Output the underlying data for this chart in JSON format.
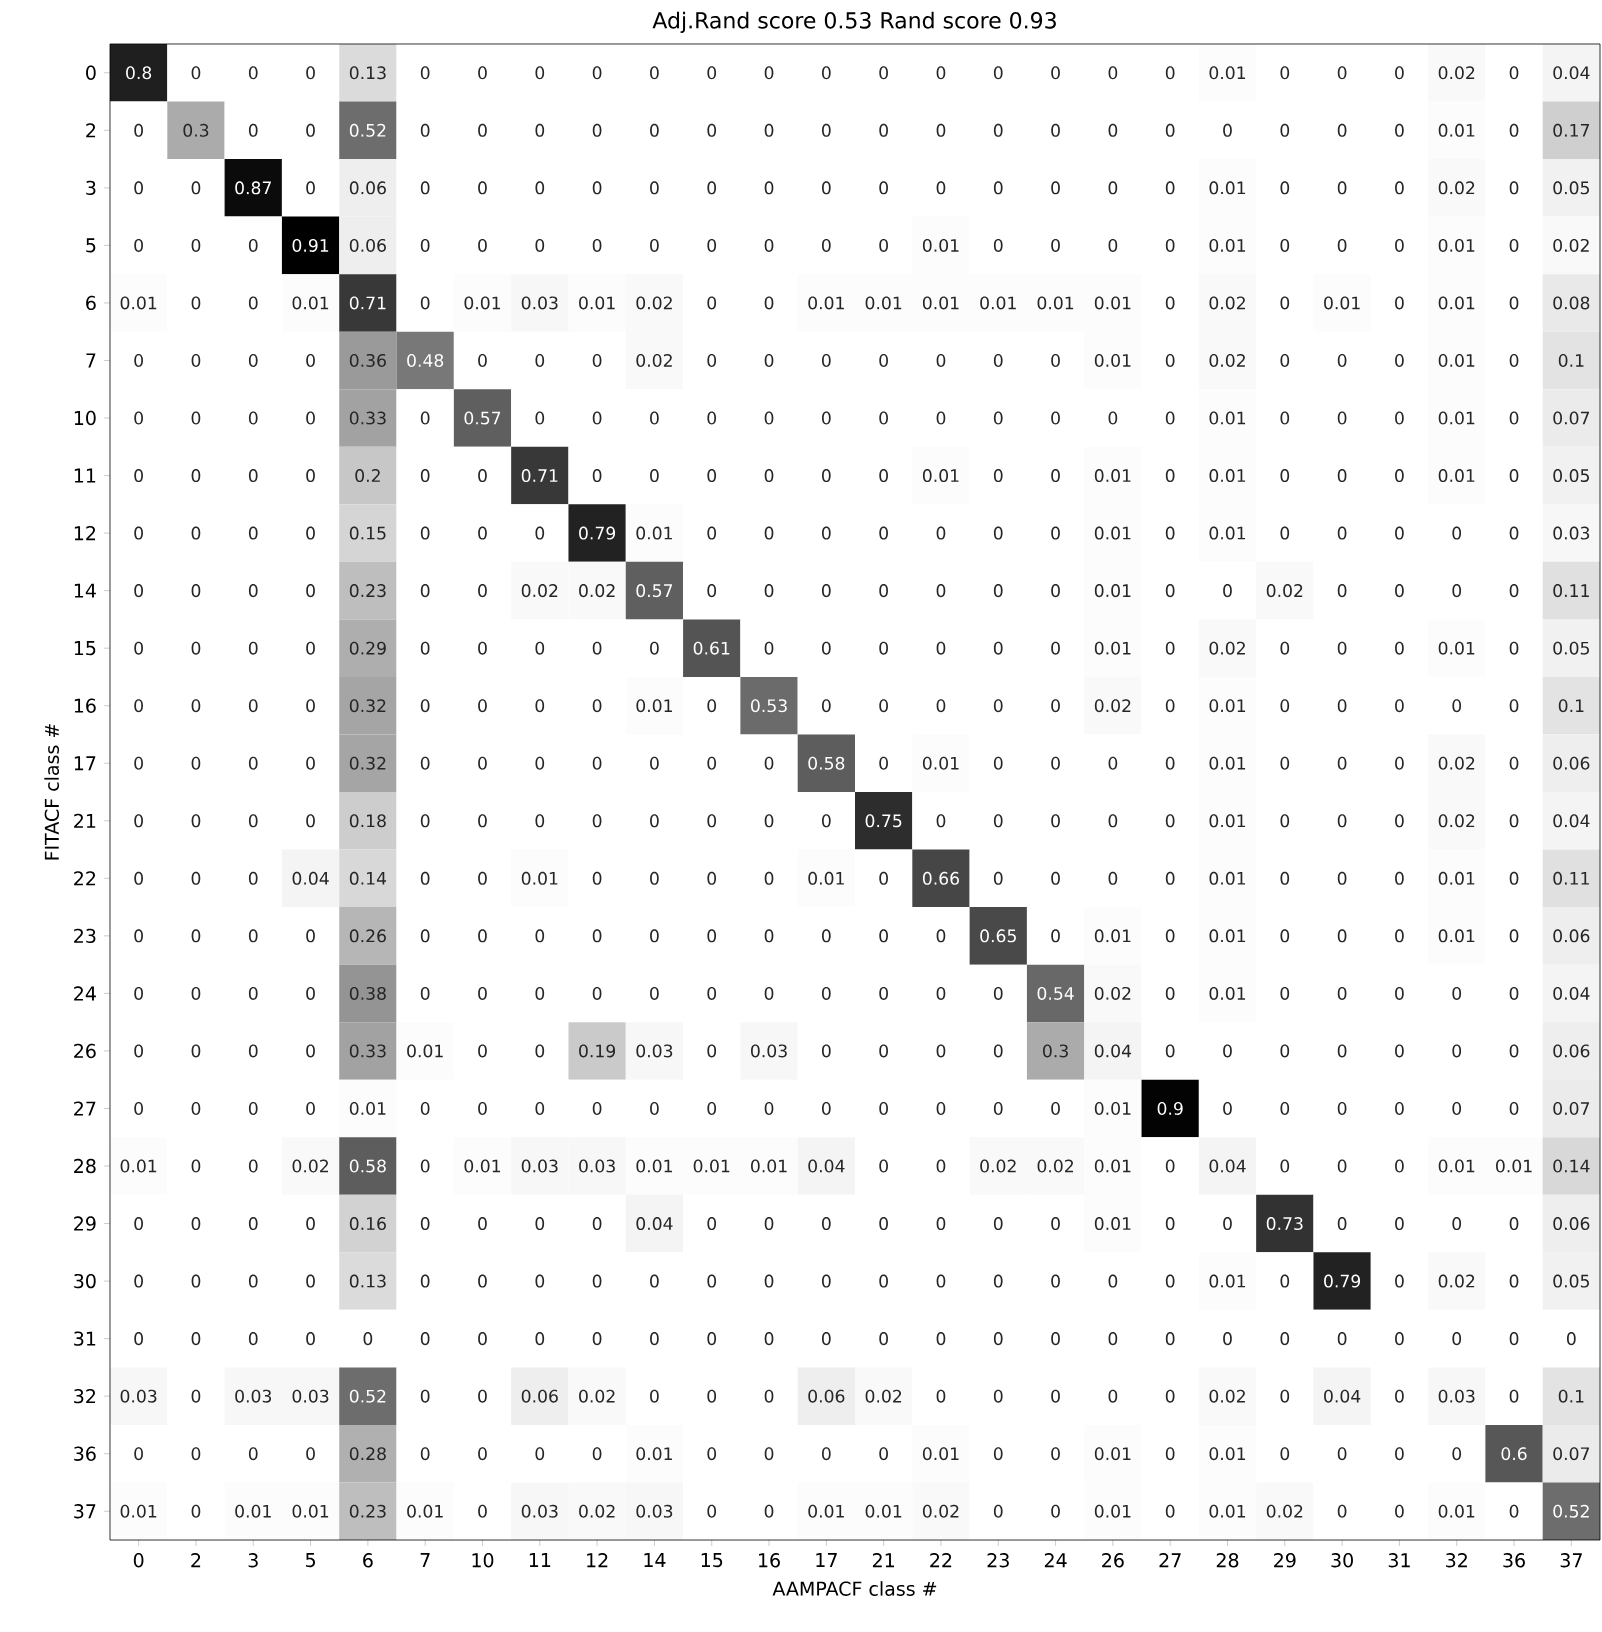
{
  "chart_data": {
    "type": "heatmap",
    "title": "Adj.Rand score 0.53 Rand score 0.93",
    "xlabel": "AAMPACF class #",
    "ylabel": "FITACF class #",
    "categories": [
      "0",
      "2",
      "3",
      "5",
      "6",
      "7",
      "10",
      "11",
      "12",
      "14",
      "15",
      "16",
      "17",
      "21",
      "22",
      "23",
      "24",
      "26",
      "27",
      "28",
      "29",
      "30",
      "31",
      "32",
      "36",
      "37"
    ],
    "y_categories": [
      "0",
      "2",
      "3",
      "5",
      "6",
      "7",
      "10",
      "11",
      "12",
      "14",
      "15",
      "16",
      "17",
      "21",
      "22",
      "23",
      "24",
      "26",
      "27",
      "28",
      "29",
      "30",
      "31",
      "32",
      "36",
      "37"
    ],
    "data_labels": true,
    "cells": [
      [
        0.8,
        0,
        0,
        0,
        0.13,
        0,
        0,
        0,
        0,
        0,
        0,
        0,
        0,
        0,
        0,
        0,
        0,
        0,
        0,
        0.01,
        0,
        0,
        0,
        0.02,
        0,
        0.04
      ],
      [
        0,
        0.3,
        0,
        0,
        0.52,
        0,
        0,
        0,
        0,
        0,
        0,
        0,
        0,
        0,
        0,
        0,
        0,
        0,
        0,
        0,
        0,
        0,
        0,
        0.01,
        0,
        0.17
      ],
      [
        0,
        0,
        0.87,
        0,
        0.06,
        0,
        0,
        0,
        0,
        0,
        0,
        0,
        0,
        0,
        0,
        0,
        0,
        0,
        0,
        0.01,
        0,
        0,
        0,
        0.02,
        0,
        0.05
      ],
      [
        0,
        0,
        0,
        0.91,
        0.06,
        0,
        0,
        0,
        0,
        0,
        0,
        0,
        0,
        0,
        0.01,
        0,
        0,
        0,
        0,
        0.01,
        0,
        0,
        0,
        0.01,
        0,
        0.02
      ],
      [
        0.01,
        0,
        0,
        0.01,
        0.71,
        0,
        0.01,
        0.03,
        0.01,
        0.02,
        0,
        0,
        0.01,
        0.01,
        0.01,
        0.01,
        0.01,
        0.01,
        0,
        0.02,
        0,
        0.01,
        0,
        0.01,
        0,
        0.08
      ],
      [
        0,
        0,
        0,
        0,
        0.36,
        0.48,
        0,
        0,
        0,
        0.02,
        0,
        0,
        0,
        0,
        0,
        0,
        0,
        0.01,
        0,
        0.02,
        0,
        0,
        0,
        0.01,
        0,
        0.1
      ],
      [
        0,
        0,
        0,
        0,
        0.33,
        0,
        0.57,
        0,
        0,
        0,
        0,
        0,
        0,
        0,
        0,
        0,
        0,
        0,
        0,
        0.01,
        0,
        0,
        0,
        0.01,
        0,
        0.07
      ],
      [
        0,
        0,
        0,
        0,
        0.2,
        0,
        0,
        0.71,
        0,
        0,
        0,
        0,
        0,
        0,
        0.01,
        0,
        0,
        0.01,
        0,
        0.01,
        0,
        0,
        0,
        0.01,
        0,
        0.05
      ],
      [
        0,
        0,
        0,
        0,
        0.15,
        0,
        0,
        0,
        0.79,
        0.01,
        0,
        0,
        0,
        0,
        0,
        0,
        0,
        0.01,
        0,
        0.01,
        0,
        0,
        0,
        0,
        0,
        0.03
      ],
      [
        0,
        0,
        0,
        0,
        0.23,
        0,
        0,
        0.02,
        0.02,
        0.57,
        0,
        0,
        0,
        0,
        0,
        0,
        0,
        0.01,
        0,
        0,
        0.02,
        0,
        0,
        0,
        0,
        0.11
      ],
      [
        0,
        0,
        0,
        0,
        0.29,
        0,
        0,
        0,
        0,
        0,
        0.61,
        0,
        0,
        0,
        0,
        0,
        0,
        0.01,
        0,
        0.02,
        0,
        0,
        0,
        0.01,
        0,
        0.05
      ],
      [
        0,
        0,
        0,
        0,
        0.32,
        0,
        0,
        0,
        0,
        0.01,
        0,
        0.53,
        0,
        0,
        0,
        0,
        0,
        0.02,
        0,
        0.01,
        0,
        0,
        0,
        0,
        0,
        0.1
      ],
      [
        0,
        0,
        0,
        0,
        0.32,
        0,
        0,
        0,
        0,
        0,
        0,
        0,
        0.58,
        0,
        0.01,
        0,
        0,
        0,
        0,
        0.01,
        0,
        0,
        0,
        0.02,
        0,
        0.06
      ],
      [
        0,
        0,
        0,
        0,
        0.18,
        0,
        0,
        0,
        0,
        0,
        0,
        0,
        0,
        0.75,
        0,
        0,
        0,
        0,
        0,
        0.01,
        0,
        0,
        0,
        0.02,
        0,
        0.04
      ],
      [
        0,
        0,
        0,
        0.04,
        0.14,
        0,
        0,
        0.01,
        0,
        0,
        0,
        0,
        0.01,
        0,
        0.66,
        0,
        0,
        0,
        0,
        0.01,
        0,
        0,
        0,
        0.01,
        0,
        0.11
      ],
      [
        0,
        0,
        0,
        0,
        0.26,
        0,
        0,
        0,
        0,
        0,
        0,
        0,
        0,
        0,
        0,
        0.65,
        0,
        0.01,
        0,
        0.01,
        0,
        0,
        0,
        0.01,
        0,
        0.06
      ],
      [
        0,
        0,
        0,
        0,
        0.38,
        0,
        0,
        0,
        0,
        0,
        0,
        0,
        0,
        0,
        0,
        0,
        0.54,
        0.02,
        0,
        0.01,
        0,
        0,
        0,
        0,
        0,
        0.04
      ],
      [
        0,
        0,
        0,
        0,
        0.33,
        0.01,
        0,
        0,
        0.19,
        0.03,
        0,
        0.03,
        0,
        0,
        0,
        0,
        0.3,
        0.04,
        0,
        0,
        0,
        0,
        0,
        0,
        0,
        0.06
      ],
      [
        0,
        0,
        0,
        0,
        0.01,
        0,
        0,
        0,
        0,
        0,
        0,
        0,
        0,
        0,
        0,
        0,
        0,
        0.01,
        0.9,
        0,
        0,
        0,
        0,
        0,
        0,
        0.07
      ],
      [
        0.01,
        0,
        0,
        0.02,
        0.58,
        0,
        0.01,
        0.03,
        0.03,
        0.01,
        0.01,
        0.01,
        0.04,
        0,
        0,
        0.02,
        0.02,
        0.01,
        0,
        0.04,
        0,
        0,
        0,
        0.01,
        0.01,
        0.14
      ],
      [
        0,
        0,
        0,
        0,
        0.16,
        0,
        0,
        0,
        0,
        0.04,
        0,
        0,
        0,
        0,
        0,
        0,
        0,
        0.01,
        0,
        0,
        0.73,
        0,
        0,
        0,
        0,
        0.06
      ],
      [
        0,
        0,
        0,
        0,
        0.13,
        0,
        0,
        0,
        0,
        0,
        0,
        0,
        0,
        0,
        0,
        0,
        0,
        0,
        0,
        0.01,
        0,
        0.79,
        0,
        0.02,
        0,
        0.05
      ],
      [
        0,
        0,
        0,
        0,
        0,
        0,
        0,
        0,
        0,
        0,
        0,
        0,
        0,
        0,
        0,
        0,
        0,
        0,
        0,
        0,
        0,
        0,
        0,
        0,
        0,
        0
      ],
      [
        0.03,
        0,
        0.03,
        0.03,
        0.52,
        0,
        0,
        0.06,
        0.02,
        0,
        0,
        0,
        0.06,
        0.02,
        0,
        0,
        0,
        0,
        0,
        0.02,
        0,
        0.04,
        0,
        0.03,
        0,
        0.1
      ],
      [
        0,
        0,
        0,
        0,
        0.28,
        0,
        0,
        0,
        0,
        0.01,
        0,
        0,
        0,
        0,
        0.01,
        0,
        0,
        0.01,
        0,
        0.01,
        0,
        0,
        0,
        0,
        0.6,
        0.07
      ],
      [
        0.01,
        0,
        0.01,
        0.01,
        0.23,
        0.01,
        0,
        0.03,
        0.02,
        0.03,
        0,
        0,
        0.01,
        0.01,
        0.02,
        0,
        0,
        0.01,
        0,
        0.01,
        0.02,
        0,
        0,
        0.01,
        0,
        0.52
      ]
    ]
  }
}
